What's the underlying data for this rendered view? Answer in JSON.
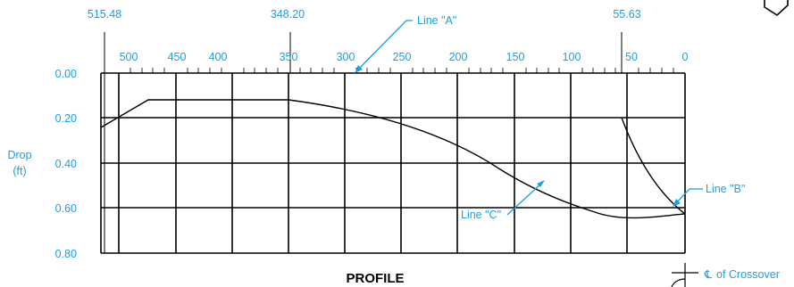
{
  "title": "PROFILE",
  "colors": {
    "blue": "#1ba0e2",
    "black": "#000000"
  },
  "top_stations": [
    "515.48",
    "348.20",
    "55.63"
  ],
  "x_ticks": [
    "500",
    "450",
    "400",
    "350",
    "300",
    "250",
    "200",
    "150",
    "100",
    "50",
    "0"
  ],
  "y_ticks": [
    "0.00",
    "0.20",
    "0.40",
    "0.60",
    "0.80"
  ],
  "y_label_line1": "Drop",
  "y_label_line2": "(ft)",
  "callouts": {
    "line_a": "Line \"A\"",
    "line_b": "Line \"B\"",
    "line_c": "Line \"C\""
  },
  "crossover": {
    "symbol": "℄",
    "label": "of Crossover"
  }
}
